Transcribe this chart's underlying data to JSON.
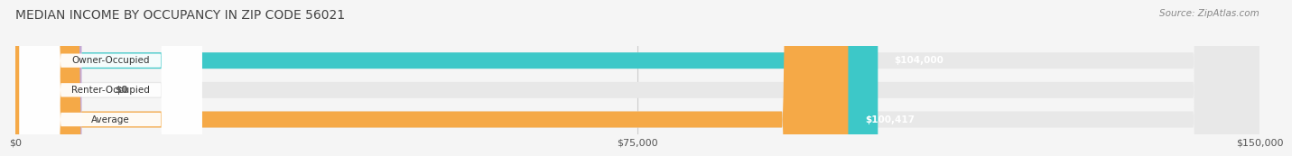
{
  "title": "MEDIAN INCOME BY OCCUPANCY IN ZIP CODE 56021",
  "source": "Source: ZipAtlas.com",
  "categories": [
    "Owner-Occupied",
    "Renter-Occupied",
    "Average"
  ],
  "values": [
    104000,
    0,
    100417
  ],
  "bar_colors": [
    "#3dc8c8",
    "#c4a8d4",
    "#f5a947"
  ],
  "value_labels": [
    "$104,000",
    "$0",
    "$100,417"
  ],
  "xlim": [
    0,
    150000
  ],
  "xticks": [
    0,
    75000,
    150000
  ],
  "xtick_labels": [
    "$0",
    "$75,000",
    "$150,000"
  ],
  "bar_height": 0.55,
  "bg_color": "#f5f5f5",
  "bar_bg_color": "#e8e8e8",
  "label_bg_color": "#ffffff"
}
